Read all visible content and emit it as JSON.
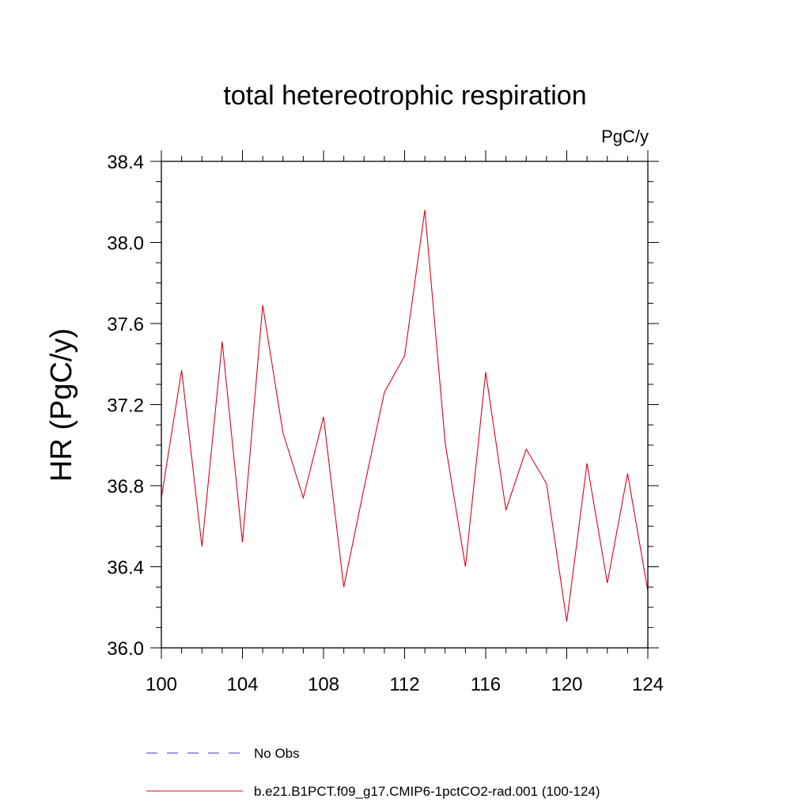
{
  "chart_data": {
    "type": "line",
    "title": "total hetereotrophic respiration",
    "units_label": "PgC/y",
    "xlabel": "",
    "ylabel": "HR  (PgC/y)",
    "xlim": [
      100,
      124
    ],
    "ylim": [
      36.0,
      38.4
    ],
    "x_ticks": [
      "100",
      "104",
      "108",
      "112",
      "116",
      "120",
      "124"
    ],
    "y_ticks": [
      "36.0",
      "36.4",
      "36.8",
      "37.2",
      "37.6",
      "38.0",
      "38.4"
    ],
    "grid": false,
    "series": [
      {
        "name": "No Obs",
        "color": "#6a5acd",
        "dash": "dashed",
        "x": [],
        "y": []
      },
      {
        "name": "b.e21.B1PCT.f09_g17.CMIP6-1pctCO2-rad.001 (100-124)",
        "color": "#e0001a",
        "dash": "solid",
        "x": [
          100,
          101,
          102,
          103,
          104,
          105,
          106,
          107,
          108,
          109,
          110,
          111,
          112,
          113,
          114,
          115,
          116,
          117,
          118,
          119,
          120,
          121,
          122,
          123,
          124
        ],
        "y": [
          36.74,
          37.37,
          36.5,
          37.51,
          36.52,
          37.69,
          37.06,
          36.74,
          37.14,
          36.3,
          36.79,
          37.26,
          37.44,
          38.16,
          37.01,
          36.4,
          37.36,
          36.68,
          36.98,
          36.81,
          36.13,
          36.91,
          36.32,
          36.86,
          36.28
        ]
      }
    ],
    "legend_position": "bottom"
  }
}
